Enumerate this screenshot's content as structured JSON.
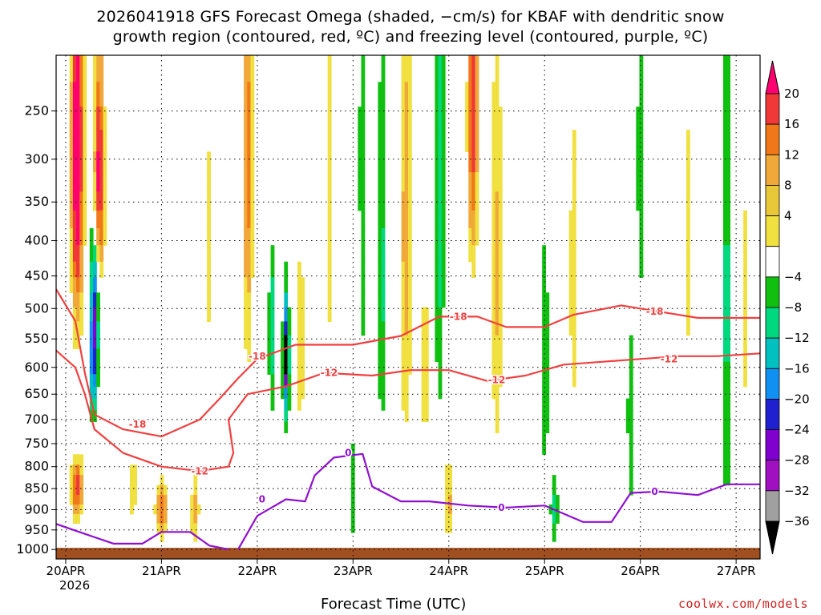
{
  "header": {
    "title_line1": "2026041918 GFS Forecast Omega (shaded, −cm/s) for KBAF with dendritic snow",
    "title_line2": "growth region (contoured, red, ºC) and freezing level (contoured, purple, ºC)"
  },
  "footer": {
    "credit": "coolwx.com/models"
  },
  "chart_data": {
    "type": "heatmap",
    "title": "2026041918 GFS Forecast Omega (shaded, −cm/s) for KBAF with dendritic snow growth region (contoured, red, ºC) and freezing level (contoured, purple, ºC)",
    "xlabel": "Forecast Time (UTC)",
    "ylabel": "",
    "x_ticks": [
      "20APR",
      "21APR",
      "22APR",
      "23APR",
      "24APR",
      "25APR",
      "26APR",
      "27APR"
    ],
    "x_year_label": "2026",
    "x_range_days": [
      -0.1,
      7.25
    ],
    "y_ticks": [
      250,
      300,
      350,
      400,
      450,
      500,
      550,
      600,
      650,
      700,
      750,
      800,
      850,
      900,
      950,
      1000
    ],
    "y_range_hpa": [
      200,
      1025
    ],
    "y_scale": "pressure",
    "grid": true,
    "colorbar": {
      "labels": [
        "20",
        "16",
        "12",
        "8",
        "4",
        "−4",
        "−8",
        "−12",
        "−16",
        "−20",
        "−24",
        "−28",
        "−32",
        "−36"
      ],
      "colors": [
        "#ff0070",
        "#f03838",
        "#f07818",
        "#f0a838",
        "#e8c838",
        "#f0e040",
        "#ffffff",
        "#10c010",
        "#00d880",
        "#00c0c0",
        "#1090f0",
        "#2020d0",
        "#8000d0",
        "#a010c0",
        "#a0a0a0",
        "#000000"
      ]
    },
    "contours": {
      "dendritic_color": "#f04040",
      "freezing_color": "#9010d0",
      "labels": [
        {
          "text": "-18",
          "x": 2.0,
          "p": 580
        },
        {
          "text": "-18",
          "x": 0.75,
          "p": 710
        },
        {
          "text": "-12",
          "x": 1.4,
          "p": 810
        },
        {
          "text": "-12",
          "x": 2.75,
          "p": 610
        },
        {
          "text": "-18",
          "x": 4.1,
          "p": 513
        },
        {
          "text": "-12",
          "x": 4.5,
          "p": 623
        },
        {
          "text": "-18",
          "x": 6.15,
          "p": 505
        },
        {
          "text": "-12",
          "x": 6.3,
          "p": 585
        },
        {
          "text": "0",
          "x": 2.05,
          "p": 875
        },
        {
          "text": "0",
          "x": 2.95,
          "p": 770
        },
        {
          "text": "0",
          "x": 4.55,
          "p": 895
        },
        {
          "text": "0",
          "x": 6.15,
          "p": 857
        }
      ]
    },
    "ground_color": "#a05020"
  }
}
